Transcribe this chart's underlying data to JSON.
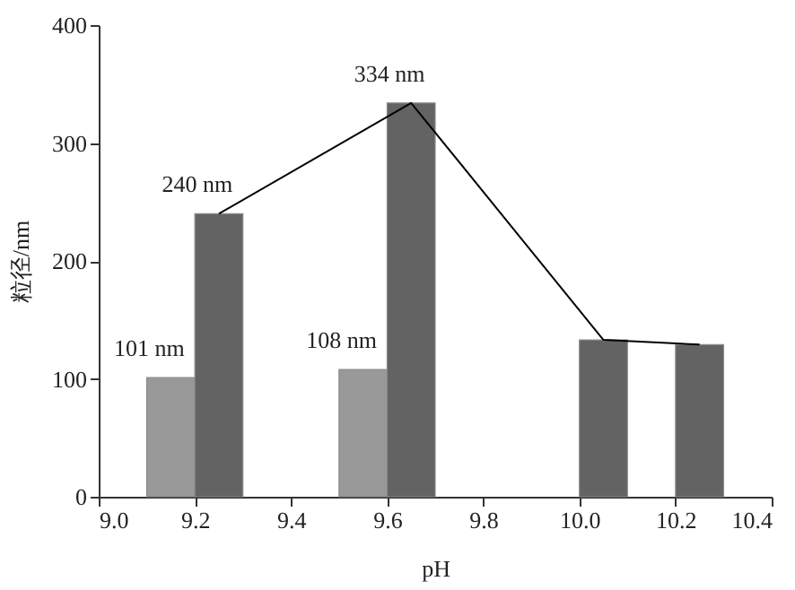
{
  "chart_data": {
    "type": "bar",
    "xlabel": "pH",
    "ylabel": "粒径/nm",
    "xlim": [
      9.0,
      10.4
    ],
    "xticks": [
      {
        "value": 9.0,
        "label": "9.0"
      },
      9.2,
      9.4,
      9.6,
      9.8,
      {
        "value": 10.0,
        "label": "10.0"
      },
      10.2,
      10.4
    ],
    "ylim": [
      0,
      400
    ],
    "yticks": [
      0,
      100,
      200,
      300,
      400
    ],
    "grid": false,
    "legend": false,
    "series": [
      {
        "color": "#999999",
        "x": [
          9.15,
          9.55
        ],
        "values": [
          101,
          108
        ],
        "value_labels": [
          "101 nm",
          "108 nm"
        ]
      },
      {
        "color": "#636363",
        "x": [
          9.25,
          9.65,
          10.05,
          10.25
        ],
        "values": [
          240,
          334,
          133,
          129
        ],
        "value_labels": [
          "240 nm",
          "334 nm",
          null,
          null
        ]
      },
      {
        "type": "line",
        "color": "#000000",
        "x": [
          9.25,
          9.65,
          10.05,
          10.25
        ],
        "values": [
          240,
          334,
          133,
          129
        ],
        "marker": "none",
        "line_style": "solid"
      }
    ]
  }
}
